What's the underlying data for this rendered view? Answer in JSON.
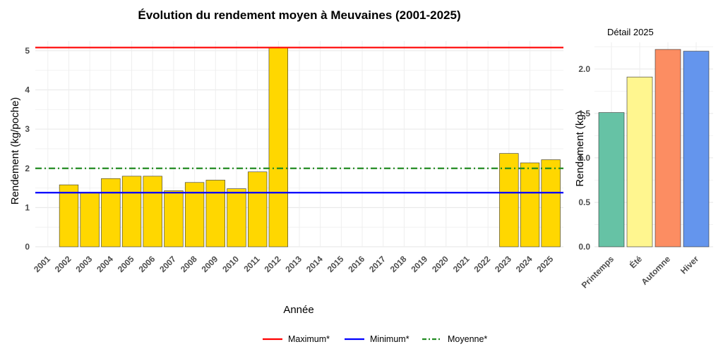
{
  "chart_data": [
    {
      "type": "bar",
      "title": "Évolution du rendement moyen à Meuvaines (2001-2025)",
      "xlabel": "Année",
      "ylabel": "Rendement (kg/poche)",
      "ylim": [
        0,
        5.25
      ],
      "yticks": [
        0,
        1,
        2,
        3,
        4,
        5
      ],
      "grid": true,
      "bar_color": "#FFD700",
      "categories": [
        "2001",
        "2002",
        "2003",
        "2004",
        "2005",
        "2006",
        "2007",
        "2008",
        "2009",
        "2010",
        "2011",
        "2012",
        "2013",
        "2014",
        "2015",
        "2016",
        "2017",
        "2018",
        "2019",
        "2020",
        "2021",
        "2022",
        "2023",
        "2024",
        "2025"
      ],
      "values": [
        null,
        1.58,
        1.38,
        1.74,
        1.8,
        1.8,
        1.43,
        1.64,
        1.7,
        1.48,
        1.91,
        5.08,
        null,
        null,
        null,
        null,
        null,
        null,
        null,
        null,
        null,
        null,
        2.38,
        2.14,
        2.22
      ],
      "reference_lines": [
        {
          "name": "Maximum*",
          "value": 5.08,
          "color": "#FF0000",
          "style": "solid"
        },
        {
          "name": "Minimum*",
          "value": 1.38,
          "color": "#0000FF",
          "style": "solid"
        },
        {
          "name": "Moyenne*",
          "value": 2.0,
          "color": "#228B22",
          "style": "dashdot"
        }
      ],
      "legend_position": "bottom"
    },
    {
      "type": "bar",
      "title": "Détail 2025",
      "xlabel": "",
      "ylabel": "Rendement (kg)",
      "ylim": [
        0,
        2.3
      ],
      "yticks": [
        0.0,
        0.5,
        1.0,
        1.5,
        2.0
      ],
      "grid": true,
      "categories": [
        "Printemps",
        "Été",
        "Automne",
        "Hiver"
      ],
      "values": [
        1.51,
        1.91,
        2.22,
        2.2
      ],
      "colors": [
        "#66C2A5",
        "#FFF68F",
        "#FC8D62",
        "#6495ED"
      ]
    }
  ]
}
